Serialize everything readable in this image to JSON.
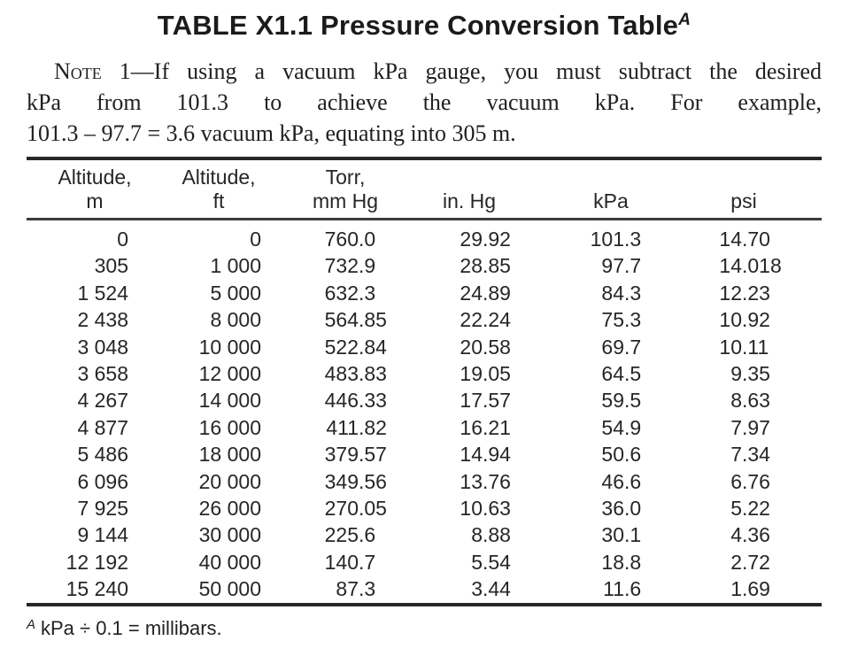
{
  "title": {
    "text": "TABLE X1.1 Pressure Conversion Table",
    "footnote_ref": "A"
  },
  "note": {
    "label": "Note",
    "line1_rest": " 1—If using a vacuum kPa gauge, you must subtract the desired",
    "line2": "kPa from 101.3 to achieve the vacuum kPa. For example,",
    "line3": "101.3 – 97.7 = 3.6 vacuum kPa, equating into 305 m."
  },
  "table": {
    "columns": [
      {
        "label_line1": "Altitude,",
        "label_line2": "m"
      },
      {
        "label_line1": "Altitude,",
        "label_line2": "ft"
      },
      {
        "label_line1": "Torr,",
        "label_line2": "mm Hg"
      },
      {
        "label_line1": "",
        "label_line2": "in. Hg"
      },
      {
        "label_line1": "",
        "label_line2": "kPa"
      },
      {
        "label_line1": "",
        "label_line2": "psi"
      }
    ],
    "rows": [
      [
        "0",
        "0",
        "760.0",
        "29.92",
        "101.3",
        "14.70"
      ],
      [
        "305",
        "1 000",
        "732.9",
        "28.85",
        "97.7",
        "14.018"
      ],
      [
        "1 524",
        "5 000",
        "632.3",
        "24.89",
        "84.3",
        "12.23"
      ],
      [
        "2 438",
        "8 000",
        "564.85",
        "22.24",
        "75.3",
        "10.92"
      ],
      [
        "3 048",
        "10 000",
        "522.84",
        "20.58",
        "69.7",
        "10.11"
      ],
      [
        "3 658",
        "12 000",
        "483.83",
        "19.05",
        "64.5",
        "9.35"
      ],
      [
        "4 267",
        "14 000",
        "446.33",
        "17.57",
        "59.5",
        "8.63"
      ],
      [
        "4 877",
        "16 000",
        "411.82",
        "16.21",
        "54.9",
        "7.97"
      ],
      [
        "5 486",
        "18 000",
        "379.57",
        "14.94",
        "50.6",
        "7.34"
      ],
      [
        "6 096",
        "20 000",
        "349.56",
        "13.76",
        "46.6",
        "6.76"
      ],
      [
        "7 925",
        "26 000",
        "270.05",
        "10.63",
        "36.0",
        "5.22"
      ],
      [
        "9 144",
        "30 000",
        "225.6",
        "8.88",
        "30.1",
        "4.36"
      ],
      [
        "12 192",
        "40 000",
        "140.7",
        "5.54",
        "18.8",
        "2.72"
      ],
      [
        "15 240",
        "50 000",
        "87.3",
        "3.44",
        "11.6",
        "1.69"
      ]
    ]
  },
  "footnote": {
    "marker": "A",
    "text": "kPa ÷ 0.1 = millibars."
  },
  "colors": {
    "text": "#1d1d1d",
    "rule": "#272727",
    "background": "#ffffff"
  }
}
